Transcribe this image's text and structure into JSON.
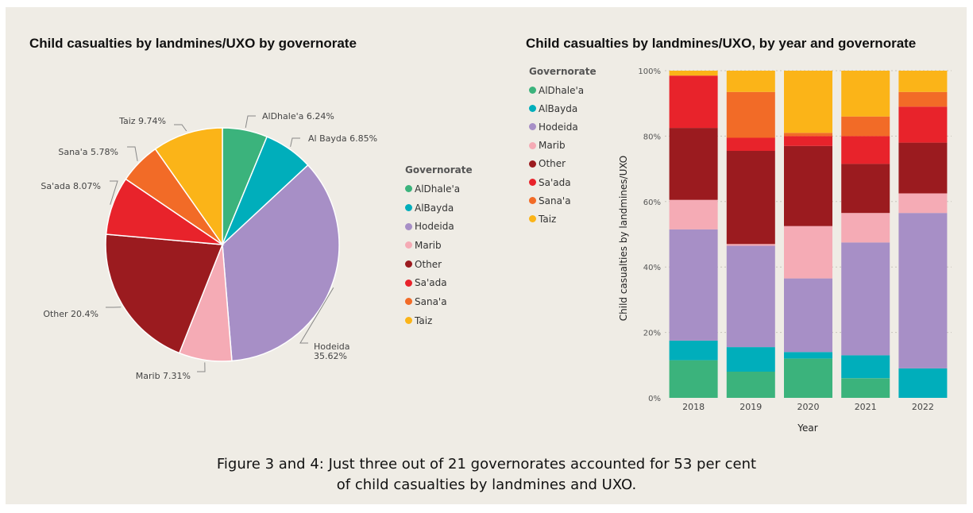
{
  "pie_title": "Child casualties by landmines/UXO by governorate",
  "bar_title": "Child casualties by landmines/UXO, by year and governorate",
  "legend_title": "Governorate",
  "caption_line1": "Figure 3 and 4: Just three out of 21 governorates accounted for 53 per cent",
  "caption_line2": "of child casualties by landmines and UXO.",
  "legend_items": [
    {
      "label": "AlDhale'a",
      "color": "#3bb37c"
    },
    {
      "label": "AlBayda",
      "color": "#00aebb"
    },
    {
      "label": "Hodeida",
      "color": "#a78fc6"
    },
    {
      "label": "Marib",
      "color": "#f5abb5"
    },
    {
      "label": "Other",
      "color": "#9b1b1f"
    },
    {
      "label": "Sa'ada",
      "color": "#e8232b"
    },
    {
      "label": "Sana'a",
      "color": "#f26b27"
    },
    {
      "label": "Taiz",
      "color": "#fbb418"
    }
  ],
  "chart_data": [
    {
      "type": "pie",
      "title": "Child casualties by landmines/UXO by governorate",
      "slices": [
        {
          "label": "AlDhale'a",
          "text": "AlDhale'a 6.24%",
          "value": 6.24,
          "color": "#3bb37c"
        },
        {
          "label": "Al Bayda",
          "text": "Al Bayda 6.85%",
          "value": 6.85,
          "color": "#00aebb"
        },
        {
          "label": "Hodeida",
          "text": "Hodeida",
          "text2": "35.62%",
          "value": 35.62,
          "color": "#a78fc6"
        },
        {
          "label": "Marib",
          "text": "Marib 7.31%",
          "value": 7.31,
          "color": "#f5abb5"
        },
        {
          "label": "Other",
          "text": "Other 20.4%",
          "value": 20.4,
          "color": "#9b1b1f"
        },
        {
          "label": "Sa'ada",
          "text": "Sa'ada 8.07%",
          "value": 8.07,
          "color": "#e8232b"
        },
        {
          "label": "Sana'a",
          "text": "Sana'a 5.78%",
          "value": 5.78,
          "color": "#f26b27"
        },
        {
          "label": "Taiz",
          "text": "Taiz 9.74%",
          "value": 9.74,
          "color": "#fbb418"
        }
      ]
    },
    {
      "type": "bar",
      "stacked": "100%",
      "title": "Child casualties by landmines/UXO, by year and governorate",
      "xlabel": "Year",
      "ylabel": "Child casualties by landmines/UXO",
      "yticks": [
        "0%",
        "20%",
        "40%",
        "60%",
        "80%",
        "100%"
      ],
      "ylim": [
        0,
        100
      ],
      "grid": true,
      "legend_position": "left",
      "categories": [
        "2018",
        "2019",
        "2020",
        "2021",
        "2022"
      ],
      "series": [
        {
          "name": "AlDhale'a",
          "color": "#3bb37c",
          "values": [
            11.5,
            8,
            12,
            6,
            0
          ]
        },
        {
          "name": "AlBayda",
          "color": "#00aebb",
          "values": [
            6,
            7.5,
            2,
            7,
            9
          ]
        },
        {
          "name": "Hodeida",
          "color": "#a78fc6",
          "values": [
            34,
            31,
            22.5,
            34.5,
            47.5
          ]
        },
        {
          "name": "Marib",
          "color": "#f5abb5",
          "values": [
            9,
            0.5,
            16,
            9,
            6
          ]
        },
        {
          "name": "Other",
          "color": "#9b1b1f",
          "values": [
            22,
            28.5,
            24.5,
            15,
            15.5
          ]
        },
        {
          "name": "Sa'ada",
          "color": "#e8232b",
          "values": [
            16,
            4,
            3,
            8.5,
            11
          ]
        },
        {
          "name": "Sana'a",
          "color": "#f26b27",
          "values": [
            0,
            14,
            1,
            6,
            4.5
          ]
        },
        {
          "name": "Taiz",
          "color": "#fbb418",
          "values": [
            1.5,
            6.5,
            19,
            14,
            6.5
          ]
        }
      ]
    }
  ]
}
